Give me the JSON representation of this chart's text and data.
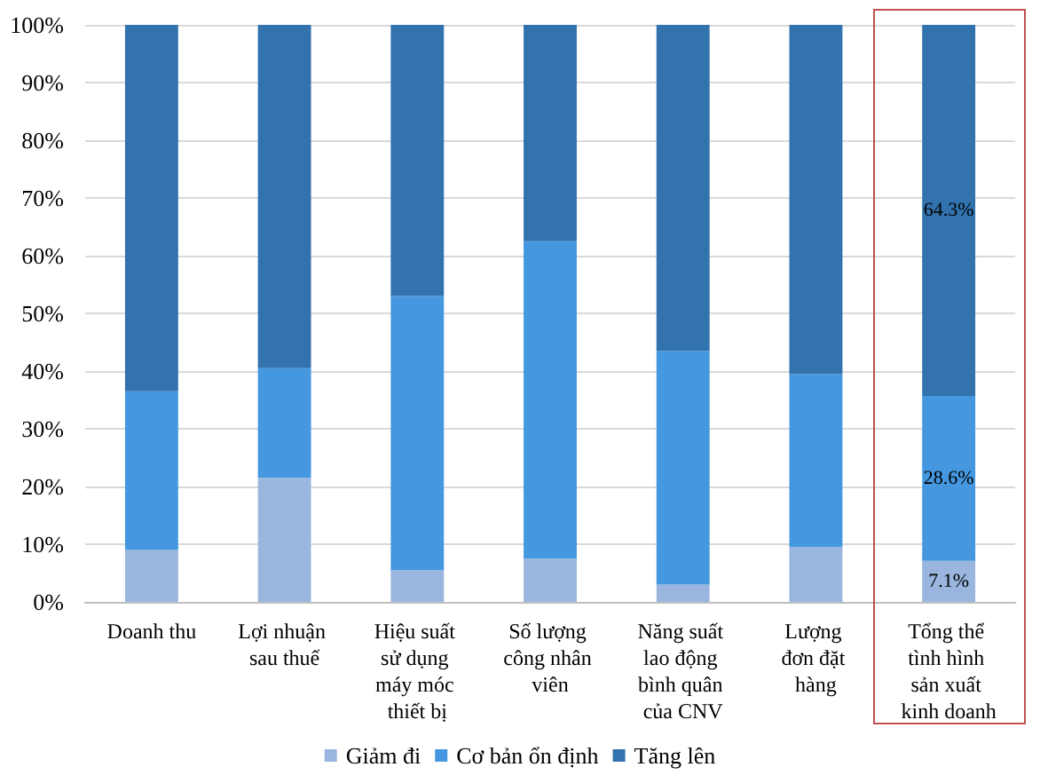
{
  "chart_data": {
    "type": "bar",
    "stacked": true,
    "categories": [
      "Doanh thu",
      "Lợi nhuận sau thuế",
      "Hiệu suất sử dụng máy móc thiết bị",
      "Số lượng công nhân viên",
      "Năng suất lao động bình quân của CNV",
      "Lượng đơn đặt hàng",
      "Tổng thể tình hình sản xuất kinh doanh"
    ],
    "series": [
      {
        "name": "Giảm đi",
        "color": "#9ab6de",
        "values": [
          9,
          21.5,
          5.5,
          7.5,
          3,
          9.5,
          7.1
        ],
        "value_labels": [
          null,
          null,
          null,
          null,
          null,
          null,
          "7.1%"
        ]
      },
      {
        "name": "Cơ bản ổn định",
        "color": "#4598df",
        "values": [
          27.5,
          19,
          47.5,
          55,
          40.5,
          30,
          28.6
        ],
        "value_labels": [
          null,
          null,
          null,
          null,
          null,
          null,
          "28.6%"
        ]
      },
      {
        "name": "Tăng lên",
        "color": "#3273ae",
        "values": [
          63.5,
          59.5,
          47,
          37.5,
          56.5,
          60.5,
          64.3
        ],
        "value_labels": [
          null,
          null,
          null,
          null,
          null,
          null,
          "64.3%"
        ]
      }
    ],
    "ylim": [
      0,
      100
    ],
    "yticks": [
      {
        "value": 0,
        "label": "0%"
      },
      {
        "value": 10,
        "label": "10%"
      },
      {
        "value": 20,
        "label": "20%"
      },
      {
        "value": 30,
        "label": "30%"
      },
      {
        "value": 40,
        "label": "40%"
      },
      {
        "value": 50,
        "label": "50%"
      },
      {
        "value": 60,
        "label": "60%"
      },
      {
        "value": 70,
        "label": "70%"
      },
      {
        "value": 80,
        "label": "80%"
      },
      {
        "value": 90,
        "label": "90%"
      },
      {
        "value": 100,
        "label": "100%"
      }
    ],
    "grid": "y",
    "legend": "bottom"
  }
}
